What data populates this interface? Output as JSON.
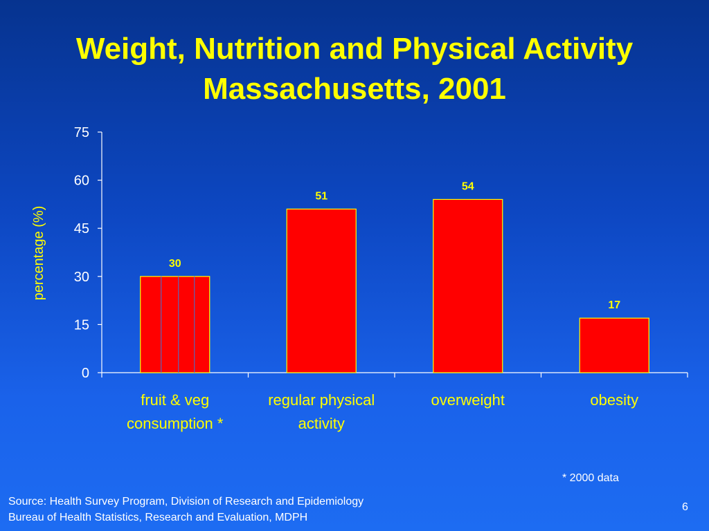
{
  "slide": {
    "title_line_1": "Weight, Nutrition and Physical Activity",
    "title_line_2": "Massachusetts, 2001",
    "note": "* 2000 data",
    "source_line_1": "Source: Health Survey Program, Division of Research and Epidemiology",
    "source_line_2": "Bureau of Health Statistics, Research and Evaluation, MDPH",
    "page_number": "6"
  },
  "colors": {
    "bar_fill": "#ff0000",
    "bar_stroke": "#ffff00",
    "label_color": "#ffff00",
    "axis_color": "#ffffff",
    "text_color": "#ffffff",
    "hatch_color": "#5c66b8"
  },
  "chart_data": {
    "type": "bar",
    "title": "",
    "xlabel": "",
    "ylabel": "percentage (%)",
    "ylim": [
      0,
      75
    ],
    "yticks": [
      0,
      15,
      30,
      45,
      60,
      75
    ],
    "grid": false,
    "legend": "none",
    "categories": [
      [
        "fruit & veg",
        "consumption *"
      ],
      [
        "regular physical",
        "activity"
      ],
      [
        "overweight"
      ],
      [
        "obesity"
      ]
    ],
    "values": [
      30,
      51,
      54,
      17
    ],
    "data_labels": [
      "30",
      "51",
      "54",
      "17"
    ]
  }
}
